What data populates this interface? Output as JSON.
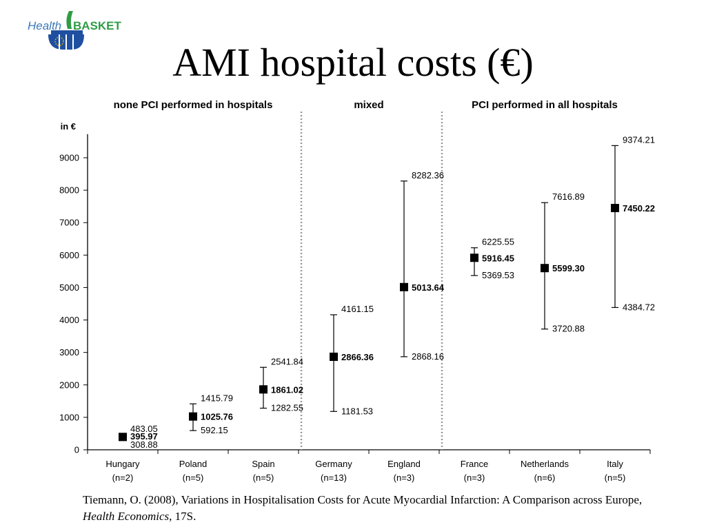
{
  "logo": {
    "text_left": "Health",
    "text_right": "BASKET",
    "colors": {
      "health": "#3a79b8",
      "basket": "#2f9c46",
      "stamp": "#1f4fa0"
    }
  },
  "title": "AMI hospital costs (€)",
  "chart_data": {
    "type": "scatter",
    "title": "",
    "ylabel": "in €",
    "xlabel": "",
    "ylim": [
      0,
      9600
    ],
    "yticks": [
      0,
      1000,
      2000,
      3000,
      4000,
      5000,
      6000,
      7000,
      8000,
      9000
    ],
    "categories": [
      "Hungary",
      "Poland",
      "Spain",
      "Germany",
      "England",
      "France",
      "Netherlands",
      "Italy"
    ],
    "sample_sizes": [
      "(n=2)",
      "(n=5)",
      "(n=5)",
      "(n=13)",
      "(n=3)",
      "(n=3)",
      "(n=6)",
      "(n=5)"
    ],
    "groups": [
      {
        "label": "none PCI performed in hospitals",
        "categories": [
          "Hungary",
          "Poland",
          "Spain"
        ]
      },
      {
        "label": "mixed",
        "categories": [
          "Germany",
          "England"
        ]
      },
      {
        "label": "PCI performed in all hospitals",
        "categories": [
          "France",
          "Netherlands",
          "Italy"
        ]
      }
    ],
    "series": [
      {
        "mean": [
          395.97,
          1025.76,
          1861.02,
          2866.36,
          5013.64,
          5916.45,
          5599.3,
          7450.22
        ],
        "upper": [
          483.05,
          1415.79,
          2541.84,
          4161.15,
          8282.36,
          6225.55,
          7616.89,
          9374.21
        ],
        "lower": [
          308.88,
          592.15,
          1282.55,
          1181.53,
          2868.16,
          5369.53,
          3720.88,
          4384.72
        ],
        "mean_labels": [
          "395.97",
          "1025.76",
          "1861.02",
          "2866.36",
          "5013.64",
          "5916.45",
          "5599.30",
          "7450.22"
        ],
        "upper_labels": [
          "483.05",
          "1415.79",
          "2541.84",
          "4161.15",
          "8282.36",
          "6225.55",
          "7616.89",
          "9374.21"
        ],
        "lower_labels": [
          "308.88",
          "592.15",
          "1282.55",
          "1181.53",
          "2868.16",
          "5369.53",
          "3720.88",
          "4384.72"
        ]
      }
    ],
    "grid": false,
    "legend": "none",
    "colors": {
      "marker": "#000000",
      "separator": "#999999"
    }
  },
  "citation": {
    "part1": "Tiemann, O. (2008), Variations in Hospitalisation Costs for Acute Myocardial Infarction: A Comparison across Europe, ",
    "journal": "Health Economics",
    "part2": ", 17S."
  }
}
